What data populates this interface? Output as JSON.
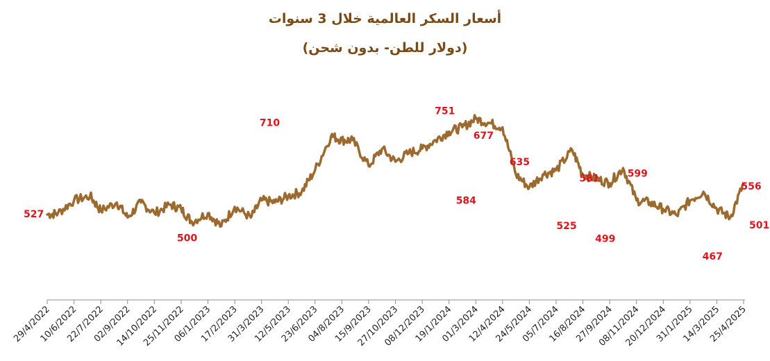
{
  "chart_data": {
    "type": "line",
    "title": "أسعار السكر العالمية خلال 3 سنوات",
    "subtitle": "(دولار للطن- بدون شحن)",
    "xlabel": "",
    "ylabel": "",
    "ylim": [
      380,
      800
    ],
    "grid": false,
    "line_color": "#9c6a2e",
    "annotation_color": "#e0141c",
    "x_ticks": [
      "29/4/2022",
      "10/6/2022",
      "22/7/2022",
      "02/9/2022",
      "14/10/2022",
      "25/11/2022",
      "06/1/2023",
      "17/2/2023",
      "31/3/2023",
      "12/5/2023",
      "23/6/2023",
      "04/8/2023",
      "15/9/2023",
      "27/10/2023",
      "08/12/2023",
      "19/1/2024",
      "01/3/2024",
      "12/4/2024",
      "24/5/2024",
      "05/7/2024",
      "16/8/2024",
      "27/9/2024",
      "08/11/2024",
      "20/12/2024",
      "31/1/2025",
      "14/3/2025",
      "25/4/2025"
    ],
    "series": [
      {
        "name": "",
        "x": [
          0,
          0.4,
          1,
          1.6,
          2,
          2.6,
          3,
          3.5,
          4,
          4.6,
          5,
          5.4,
          6,
          6.5,
          7,
          7.6,
          8,
          8.5,
          9,
          9.5,
          10,
          10.6,
          11,
          11.4,
          12,
          12.5,
          13,
          13.5,
          14,
          14.5,
          15,
          15.5,
          16,
          16.5,
          17,
          17.5,
          18,
          18.5,
          19,
          19.6,
          20,
          20.5,
          21,
          21.5,
          22,
          22.5,
          23,
          23.5,
          24,
          24.5,
          25,
          25.5,
          26
        ],
        "y": [
          527,
          530,
          560,
          570,
          536,
          555,
          520,
          555,
          530,
          550,
          540,
          510,
          530,
          500,
          545,
          520,
          560,
          555,
          570,
          580,
          630,
          710,
          700,
          700,
          640,
          680,
          650,
          670,
          680,
          700,
          720,
          730,
          750,
          740,
          730,
          620,
          590,
          620,
          630,
          677,
          620,
          610,
          600,
          635,
          560,
          555,
          540,
          525,
          560,
          580,
          540,
          520,
          599
        ]
      }
    ],
    "annotations": [
      {
        "label": "527",
        "x": 0,
        "y": 527
      },
      {
        "label": "500",
        "x": 5,
        "y": 500
      },
      {
        "label": "710",
        "x": 8.5,
        "y": 710
      },
      {
        "label": "751",
        "x": 14,
        "y": 751
      },
      {
        "label": "584",
        "x": 15,
        "y": 584
      },
      {
        "label": "677",
        "x": 15.6,
        "y": 677
      },
      {
        "label": "635",
        "x": 17,
        "y": 635
      },
      {
        "label": "525",
        "x": 18.7,
        "y": 525
      },
      {
        "label": "581",
        "x": 19.5,
        "y": 581
      },
      {
        "label": "499",
        "x": 20.3,
        "y": 499
      },
      {
        "label": "599",
        "x": 21.3,
        "y": 599
      },
      {
        "label": "467",
        "x": 24.2,
        "y": 467
      },
      {
        "label": "556",
        "x": 25.7,
        "y": 556
      },
      {
        "label": "501",
        "x": 26,
        "y": 501
      }
    ]
  }
}
